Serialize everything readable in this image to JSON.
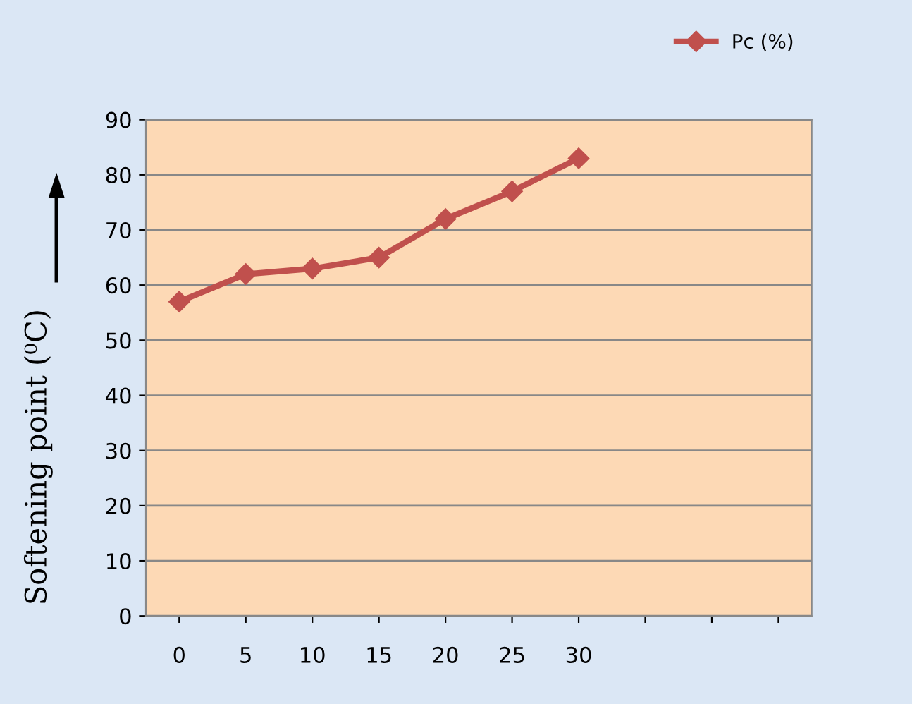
{
  "chart_data": {
    "type": "line",
    "ylabel": "Softening point (⁰C)",
    "categories": [
      "0",
      "5",
      "10",
      "15",
      "20",
      "25",
      "30",
      null,
      null,
      null
    ],
    "series": [
      {
        "name": "Pc (%)",
        "color": "#c0504d",
        "values": [
          57,
          62,
          63,
          65,
          72,
          77,
          83,
          null,
          null,
          null
        ]
      }
    ],
    "ylim": [
      0,
      90
    ],
    "yticks": [
      0,
      10,
      20,
      30,
      40,
      50,
      60,
      70,
      80,
      90
    ],
    "grid": "y",
    "legend": "top right",
    "marker": "diamond",
    "line_style": "solid"
  }
}
